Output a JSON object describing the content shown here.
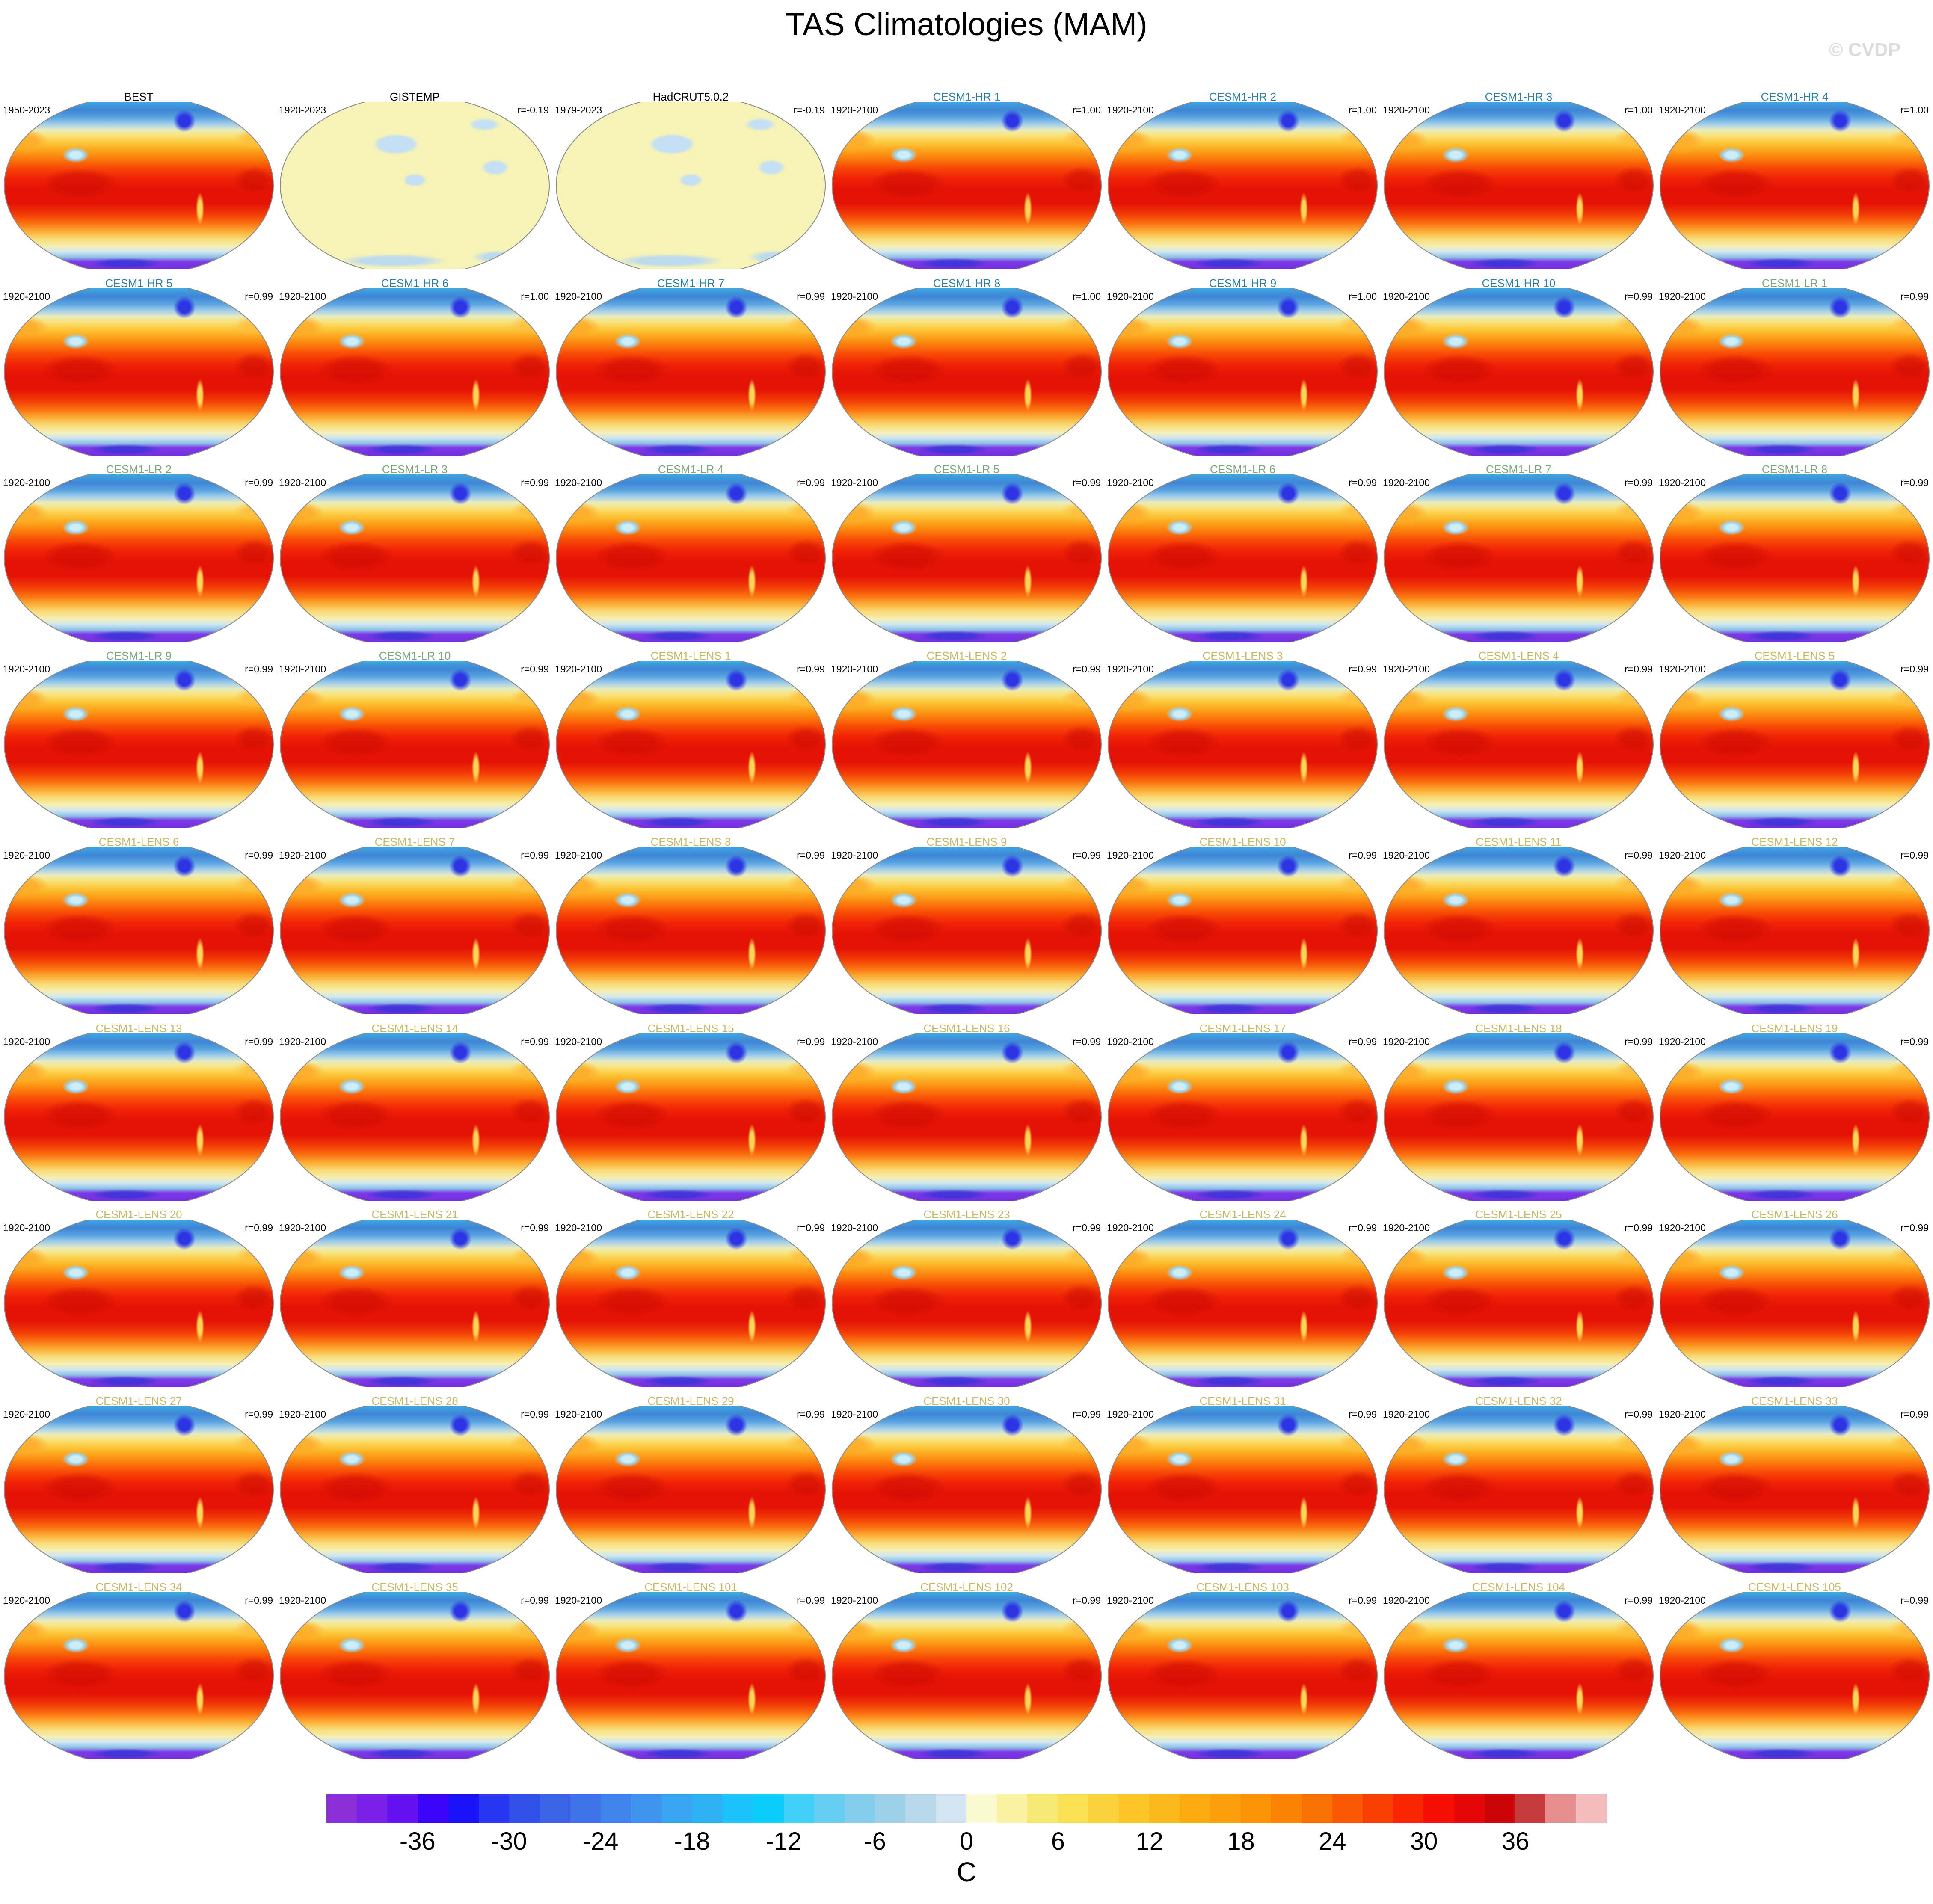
{
  "title": "TAS Climatologies (MAM)",
  "watermark": "© CVDP",
  "background_color": "#ffffff",
  "group_colors": {
    "obs": "#000000",
    "hr": "#2a7fa6",
    "lr": "#78a87c",
    "lens": "#c8b763"
  },
  "chart_data": {
    "type": "heatmap",
    "title": "TAS Climatologies (MAM)",
    "subtitle": "Grid of global surface air temperature (TAS) climatology maps, Winkel-tripel projection, Pacific-centered",
    "grid": {
      "rows": 9,
      "cols": 7
    },
    "panels": [
      {
        "label": "BEST",
        "period": "1950-2023",
        "r": "",
        "group": "obs",
        "style": "full"
      },
      {
        "label": "GISTEMP",
        "period": "1920-2023",
        "r": "r=-0.19",
        "group": "obs",
        "style": "flat"
      },
      {
        "label": "HadCRUT5.0.2",
        "period": "1979-2023",
        "r": "r=-0.19",
        "group": "obs",
        "style": "flat"
      },
      {
        "label": "CESM1-HR 1",
        "period": "1920-2100",
        "r": "r=1.00",
        "group": "hr",
        "style": "full"
      },
      {
        "label": "CESM1-HR 2",
        "period": "1920-2100",
        "r": "r=1.00",
        "group": "hr",
        "style": "full"
      },
      {
        "label": "CESM1-HR 3",
        "period": "1920-2100",
        "r": "r=1.00",
        "group": "hr",
        "style": "full"
      },
      {
        "label": "CESM1-HR 4",
        "period": "1920-2100",
        "r": "r=1.00",
        "group": "hr",
        "style": "full"
      },
      {
        "label": "CESM1-HR 5",
        "period": "1920-2100",
        "r": "r=0.99",
        "group": "hr",
        "style": "full"
      },
      {
        "label": "CESM1-HR 6",
        "period": "1920-2100",
        "r": "r=1.00",
        "group": "hr",
        "style": "full"
      },
      {
        "label": "CESM1-HR 7",
        "period": "1920-2100",
        "r": "r=0.99",
        "group": "hr",
        "style": "full"
      },
      {
        "label": "CESM1-HR 8",
        "period": "1920-2100",
        "r": "r=1.00",
        "group": "hr",
        "style": "full"
      },
      {
        "label": "CESM1-HR 9",
        "period": "1920-2100",
        "r": "r=1.00",
        "group": "hr",
        "style": "full"
      },
      {
        "label": "CESM1-HR 10",
        "period": "1920-2100",
        "r": "r=0.99",
        "group": "hr",
        "style": "full"
      },
      {
        "label": "CESM1-LR 1",
        "period": "1920-2100",
        "r": "r=0.99",
        "group": "lr",
        "style": "full"
      },
      {
        "label": "CESM1-LR 2",
        "period": "1920-2100",
        "r": "r=0.99",
        "group": "lr",
        "style": "full"
      },
      {
        "label": "CESM1-LR 3",
        "period": "1920-2100",
        "r": "r=0.99",
        "group": "lr",
        "style": "full"
      },
      {
        "label": "CESM1-LR 4",
        "period": "1920-2100",
        "r": "r=0.99",
        "group": "lr",
        "style": "full"
      },
      {
        "label": "CESM1-LR 5",
        "period": "1920-2100",
        "r": "r=0.99",
        "group": "lr",
        "style": "full"
      },
      {
        "label": "CESM1-LR 6",
        "period": "1920-2100",
        "r": "r=0.99",
        "group": "lr",
        "style": "full"
      },
      {
        "label": "CESM1-LR 7",
        "period": "1920-2100",
        "r": "r=0.99",
        "group": "lr",
        "style": "full"
      },
      {
        "label": "CESM1-LR 8",
        "period": "1920-2100",
        "r": "r=0.99",
        "group": "lr",
        "style": "full"
      },
      {
        "label": "CESM1-LR 9",
        "period": "1920-2100",
        "r": "r=0.99",
        "group": "lr",
        "style": "full"
      },
      {
        "label": "CESM1-LR 10",
        "period": "1920-2100",
        "r": "r=0.99",
        "group": "lr",
        "style": "full"
      },
      {
        "label": "CESM1-LENS 1",
        "period": "1920-2100",
        "r": "r=0.99",
        "group": "lens",
        "style": "full"
      },
      {
        "label": "CESM1-LENS 2",
        "period": "1920-2100",
        "r": "r=0.99",
        "group": "lens",
        "style": "full"
      },
      {
        "label": "CESM1-LENS 3",
        "period": "1920-2100",
        "r": "r=0.99",
        "group": "lens",
        "style": "full"
      },
      {
        "label": "CESM1-LENS 4",
        "period": "1920-2100",
        "r": "r=0.99",
        "group": "lens",
        "style": "full"
      },
      {
        "label": "CESM1-LENS 5",
        "period": "1920-2100",
        "r": "r=0.99",
        "group": "lens",
        "style": "full"
      },
      {
        "label": "CESM1-LENS 6",
        "period": "1920-2100",
        "r": "r=0.99",
        "group": "lens",
        "style": "full"
      },
      {
        "label": "CESM1-LENS 7",
        "period": "1920-2100",
        "r": "r=0.99",
        "group": "lens",
        "style": "full"
      },
      {
        "label": "CESM1-LENS 8",
        "period": "1920-2100",
        "r": "r=0.99",
        "group": "lens",
        "style": "full"
      },
      {
        "label": "CESM1-LENS 9",
        "period": "1920-2100",
        "r": "r=0.99",
        "group": "lens",
        "style": "full"
      },
      {
        "label": "CESM1-LENS 10",
        "period": "1920-2100",
        "r": "r=0.99",
        "group": "lens",
        "style": "full"
      },
      {
        "label": "CESM1-LENS 11",
        "period": "1920-2100",
        "r": "r=0.99",
        "group": "lens",
        "style": "full"
      },
      {
        "label": "CESM1-LENS 12",
        "period": "1920-2100",
        "r": "r=0.99",
        "group": "lens",
        "style": "full"
      },
      {
        "label": "CESM1-LENS 13",
        "period": "1920-2100",
        "r": "r=0.99",
        "group": "lens",
        "style": "full"
      },
      {
        "label": "CESM1-LENS 14",
        "period": "1920-2100",
        "r": "r=0.99",
        "group": "lens",
        "style": "full"
      },
      {
        "label": "CESM1-LENS 15",
        "period": "1920-2100",
        "r": "r=0.99",
        "group": "lens",
        "style": "full"
      },
      {
        "label": "CESM1-LENS 16",
        "period": "1920-2100",
        "r": "r=0.99",
        "group": "lens",
        "style": "full"
      },
      {
        "label": "CESM1-LENS 17",
        "period": "1920-2100",
        "r": "r=0.99",
        "group": "lens",
        "style": "full"
      },
      {
        "label": "CESM1-LENS 18",
        "period": "1920-2100",
        "r": "r=0.99",
        "group": "lens",
        "style": "full"
      },
      {
        "label": "CESM1-LENS 19",
        "period": "1920-2100",
        "r": "r=0.99",
        "group": "lens",
        "style": "full"
      },
      {
        "label": "CESM1-LENS 20",
        "period": "1920-2100",
        "r": "r=0.99",
        "group": "lens",
        "style": "full"
      },
      {
        "label": "CESM1-LENS 21",
        "period": "1920-2100",
        "r": "r=0.99",
        "group": "lens",
        "style": "full"
      },
      {
        "label": "CESM1-LENS 22",
        "period": "1920-2100",
        "r": "r=0.99",
        "group": "lens",
        "style": "full"
      },
      {
        "label": "CESM1-LENS 23",
        "period": "1920-2100",
        "r": "r=0.99",
        "group": "lens",
        "style": "full"
      },
      {
        "label": "CESM1-LENS 24",
        "period": "1920-2100",
        "r": "r=0.99",
        "group": "lens",
        "style": "full"
      },
      {
        "label": "CESM1-LENS 25",
        "period": "1920-2100",
        "r": "r=0.99",
        "group": "lens",
        "style": "full"
      },
      {
        "label": "CESM1-LENS 26",
        "period": "1920-2100",
        "r": "r=0.99",
        "group": "lens",
        "style": "full"
      },
      {
        "label": "CESM1-LENS 27",
        "period": "1920-2100",
        "r": "r=0.99",
        "group": "lens",
        "style": "full"
      },
      {
        "label": "CESM1-LENS 28",
        "period": "1920-2100",
        "r": "r=0.99",
        "group": "lens",
        "style": "full"
      },
      {
        "label": "CESM1-LENS 29",
        "period": "1920-2100",
        "r": "r=0.99",
        "group": "lens",
        "style": "full"
      },
      {
        "label": "CESM1-LENS 30",
        "period": "1920-2100",
        "r": "r=0.99",
        "group": "lens",
        "style": "full"
      },
      {
        "label": "CESM1-LENS 31",
        "period": "1920-2100",
        "r": "r=0.99",
        "group": "lens",
        "style": "full"
      },
      {
        "label": "CESM1-LENS 32",
        "period": "1920-2100",
        "r": "r=0.99",
        "group": "lens",
        "style": "full"
      },
      {
        "label": "CESM1-LENS 33",
        "period": "1920-2100",
        "r": "r=0.99",
        "group": "lens",
        "style": "full"
      },
      {
        "label": "CESM1-LENS 34",
        "period": "1920-2100",
        "r": "r=0.99",
        "group": "lens",
        "style": "full"
      },
      {
        "label": "CESM1-LENS 35",
        "period": "1920-2100",
        "r": "r=0.99",
        "group": "lens",
        "style": "full"
      },
      {
        "label": "CESM1-LENS 101",
        "period": "1920-2100",
        "r": "r=0.99",
        "group": "lens",
        "style": "full"
      },
      {
        "label": "CESM1-LENS 102",
        "period": "1920-2100",
        "r": "r=0.99",
        "group": "lens",
        "style": "full"
      },
      {
        "label": "CESM1-LENS 103",
        "period": "1920-2100",
        "r": "r=0.99",
        "group": "lens",
        "style": "full"
      },
      {
        "label": "CESM1-LENS 104",
        "period": "1920-2100",
        "r": "r=0.99",
        "group": "lens",
        "style": "full"
      },
      {
        "label": "CESM1-LENS 105",
        "period": "1920-2100",
        "r": "r=0.99",
        "group": "lens",
        "style": "full"
      }
    ],
    "colorbar": {
      "units": "C",
      "min": -42,
      "max": 42,
      "cell_step": 2,
      "tick_labels": [
        "-36",
        "-30",
        "-24",
        "-18",
        "-12",
        "-6",
        "0",
        "6",
        "12",
        "18",
        "24",
        "30",
        "36"
      ],
      "cell_colors": [
        "#8b2fd8",
        "#7a1fe6",
        "#6410f0",
        "#3a05f8",
        "#1c12fa",
        "#2836f2",
        "#3250ea",
        "#3a64e6",
        "#3e74e7",
        "#3f84ea",
        "#3f94ee",
        "#38a4f2",
        "#2db2f6",
        "#1cc0fa",
        "#0bccfd",
        "#40d0f8",
        "#66cef2",
        "#85cdec",
        "#9ed0ea",
        "#b8d9ec",
        "#d4e6f4",
        "#fbf9d0",
        "#f9f2a2",
        "#f8e976",
        "#fbdf54",
        "#fcd23c",
        "#fcc52a",
        "#fbb81c",
        "#fbab10",
        "#fb9f0a",
        "#fa9306",
        "#fa8304",
        "#f97003",
        "#f85902",
        "#f93e02",
        "#fa2603",
        "#f60e05",
        "#e40707",
        "#cb0505",
        "#c43c3c",
        "#e68e8e",
        "#f4bcbc"
      ]
    }
  }
}
